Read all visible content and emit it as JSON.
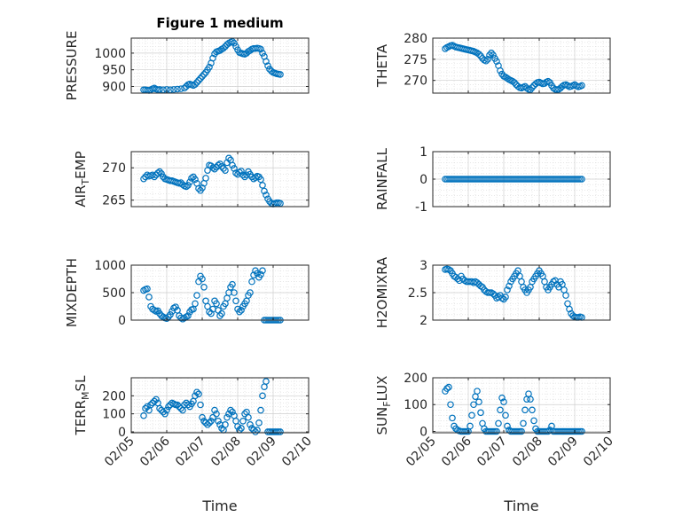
{
  "chart_data": [
    {
      "type": "scatter",
      "title": "Figure 1 medium",
      "ylabel": "PRESSURE",
      "ylim": [
        880,
        1045
      ],
      "yticks": [
        900,
        950,
        1000
      ],
      "xlim": [
        0,
        5
      ],
      "xticks": [
        "02/05",
        "02/06",
        "02/07",
        "02/08",
        "02/09",
        "02/10"
      ],
      "xlabel": "",
      "x": [
        0.35,
        0.4,
        0.45,
        0.5,
        0.55,
        0.6,
        0.65,
        0.7,
        0.75,
        0.8,
        0.9,
        1,
        1.1,
        1.2,
        1.3,
        1.4,
        1.5,
        1.55,
        1.6,
        1.65,
        1.7,
        1.75,
        1.8,
        1.85,
        1.9,
        1.95,
        2,
        2.05,
        2.1,
        2.15,
        2.2,
        2.25,
        2.3,
        2.35,
        2.4,
        2.45,
        2.5,
        2.55,
        2.6,
        2.65,
        2.7,
        2.75,
        2.8,
        2.85,
        2.9,
        2.95,
        3,
        3.05,
        3.1,
        3.15,
        3.2,
        3.25,
        3.3,
        3.35,
        3.4,
        3.45,
        3.5,
        3.55,
        3.6,
        3.65,
        3.7,
        3.75,
        3.8,
        3.85,
        3.9,
        3.95,
        4,
        4.05,
        4.1,
        4.15,
        4.2
      ],
      "y": [
        890,
        890,
        889,
        888,
        890,
        893,
        895,
        892,
        890,
        891,
        890,
        891,
        890,
        891,
        892,
        893,
        895,
        900,
        905,
        907,
        905,
        903,
        906,
        912,
        918,
        924,
        930,
        936,
        942,
        950,
        958,
        970,
        985,
        998,
        1004,
        1006,
        1008,
        1012,
        1015,
        1020,
        1026,
        1030,
        1033,
        1035,
        1030,
        1020,
        1010,
        1002,
        1000,
        998,
        997,
        1000,
        1005,
        1008,
        1012,
        1014,
        1014,
        1015,
        1014,
        1012,
        1000,
        990,
        975,
        962,
        952,
        946,
        942,
        940,
        938,
        937,
        936
      ]
    },
    {
      "type": "scatter",
      "ylabel": "THETA",
      "ylim": [
        267,
        280
      ],
      "yticks": [
        270,
        275,
        280
      ],
      "xlim": [
        0,
        5
      ],
      "xticks": [
        "02/05",
        "02/06",
        "02/07",
        "02/08",
        "02/09",
        "02/10"
      ],
      "xlabel": "",
      "x": [
        0.35,
        0.4,
        0.45,
        0.5,
        0.55,
        0.6,
        0.65,
        0.7,
        0.75,
        0.8,
        0.85,
        0.9,
        0.95,
        1,
        1.05,
        1.1,
        1.15,
        1.2,
        1.25,
        1.3,
        1.35,
        1.4,
        1.45,
        1.5,
        1.55,
        1.6,
        1.65,
        1.7,
        1.75,
        1.8,
        1.85,
        1.9,
        1.95,
        2,
        2.05,
        2.1,
        2.15,
        2.2,
        2.25,
        2.3,
        2.35,
        2.4,
        2.45,
        2.5,
        2.55,
        2.6,
        2.65,
        2.7,
        2.75,
        2.8,
        2.85,
        2.9,
        2.95,
        3,
        3.05,
        3.1,
        3.15,
        3.2,
        3.25,
        3.3,
        3.35,
        3.4,
        3.45,
        3.5,
        3.55,
        3.6,
        3.65,
        3.7,
        3.75,
        3.8,
        3.85,
        3.9,
        3.95,
        4,
        4.05,
        4.1,
        4.15,
        4.2
      ],
      "y": [
        277.5,
        277.8,
        278,
        278.2,
        278.3,
        278.1,
        277.9,
        277.8,
        277.7,
        277.6,
        277.5,
        277.4,
        277.3,
        277.2,
        277.1,
        277,
        276.9,
        276.7,
        276.5,
        276.2,
        275.8,
        275.2,
        274.8,
        274.6,
        275,
        276,
        276.5,
        276,
        275.2,
        274.5,
        273.5,
        272.3,
        271.5,
        271,
        270.8,
        270.5,
        270.2,
        270,
        269.8,
        269.5,
        269,
        268.6,
        268.3,
        268.2,
        268.4,
        268.6,
        268.2,
        267.9,
        267.8,
        268.3,
        268.8,
        269.2,
        269.5,
        269.6,
        269.4,
        269.2,
        269.3,
        269.6,
        269.8,
        269.5,
        268.8,
        268.2,
        267.9,
        267.8,
        267.9,
        268.2,
        268.6,
        268.9,
        269,
        268.8,
        268.5,
        268.6,
        268.8,
        269,
        268.7,
        268.5,
        268.6,
        268.8
      ]
    },
    {
      "type": "scatter",
      "ylabel": "AIR",
      "ylabel_sub": "T",
      "ylabel_rest": "EMP",
      "ylim": [
        264,
        272.5
      ],
      "yticks": [
        265,
        270
      ],
      "xlim": [
        0,
        5
      ],
      "xticks": [
        "02/05",
        "02/06",
        "02/07",
        "02/08",
        "02/09",
        "02/10"
      ],
      "xlabel": "",
      "x": [
        0.35,
        0.4,
        0.45,
        0.5,
        0.55,
        0.6,
        0.65,
        0.7,
        0.75,
        0.8,
        0.85,
        0.9,
        0.95,
        1,
        1.05,
        1.1,
        1.15,
        1.2,
        1.25,
        1.3,
        1.35,
        1.4,
        1.45,
        1.5,
        1.55,
        1.6,
        1.65,
        1.7,
        1.75,
        1.8,
        1.85,
        1.9,
        1.95,
        2,
        2.05,
        2.1,
        2.15,
        2.2,
        2.25,
        2.3,
        2.35,
        2.4,
        2.45,
        2.5,
        2.55,
        2.6,
        2.65,
        2.7,
        2.75,
        2.8,
        2.85,
        2.9,
        2.95,
        3,
        3.05,
        3.1,
        3.15,
        3.2,
        3.25,
        3.3,
        3.35,
        3.4,
        3.45,
        3.5,
        3.55,
        3.6,
        3.65,
        3.7,
        3.75,
        3.8,
        3.85,
        3.9,
        3.95,
        4,
        4.05,
        4.1,
        4.15,
        4.2
      ],
      "y": [
        268.3,
        268.6,
        268.9,
        268.7,
        268.8,
        268.9,
        268.6,
        268.9,
        269.2,
        269.4,
        269.1,
        268.6,
        268.3,
        268.2,
        268.1,
        268.0,
        268.0,
        267.9,
        267.8,
        267.7,
        267.6,
        267.7,
        267.4,
        267.2,
        267.1,
        267.3,
        267.8,
        268.4,
        268.6,
        268.2,
        267.6,
        266.8,
        266.5,
        266.9,
        267.6,
        268.4,
        269.6,
        270.4,
        270.3,
        270.0,
        269.8,
        270.1,
        270.4,
        270.6,
        270.2,
        269.9,
        269.6,
        270.8,
        271.5,
        271.2,
        270.4,
        269.9,
        269.2,
        269.0,
        269.3,
        269.5,
        268.9,
        268.6,
        268.9,
        269.4,
        269.0,
        268.6,
        268.3,
        268.5,
        268.7,
        268.6,
        268.2,
        267.3,
        266.4,
        265.8,
        265.2,
        264.8,
        264.5,
        264.4,
        264.5,
        264.6,
        264.6,
        264.5
      ]
    },
    {
      "type": "scatter",
      "ylabel": "RAINFALL",
      "ylim": [
        -1,
        1
      ],
      "yticks": [
        -1,
        0,
        1
      ],
      "xlim": [
        0,
        5
      ],
      "xticks": [
        "02/05",
        "02/06",
        "02/07",
        "02/08",
        "02/09",
        "02/10"
      ],
      "xlabel": "",
      "x": [
        0.35,
        0.4,
        0.45,
        0.5,
        0.55,
        0.6,
        0.65,
        0.7,
        0.75,
        0.8,
        0.85,
        0.9,
        0.95,
        1,
        1.05,
        1.1,
        1.15,
        1.2,
        1.25,
        1.3,
        1.35,
        1.4,
        1.45,
        1.5,
        1.55,
        1.6,
        1.65,
        1.7,
        1.75,
        1.8,
        1.85,
        1.9,
        1.95,
        2,
        2.05,
        2.1,
        2.15,
        2.2,
        2.25,
        2.3,
        2.35,
        2.4,
        2.45,
        2.5,
        2.55,
        2.6,
        2.65,
        2.7,
        2.75,
        2.8,
        2.85,
        2.9,
        2.95,
        3,
        3.05,
        3.1,
        3.15,
        3.2,
        3.25,
        3.3,
        3.35,
        3.4,
        3.45,
        3.5,
        3.55,
        3.6,
        3.65,
        3.7,
        3.75,
        3.8,
        3.85,
        3.9,
        3.95,
        4,
        4.05,
        4.1,
        4.15,
        4.2
      ],
      "y": [
        0,
        0,
        0,
        0,
        0,
        0,
        0,
        0,
        0,
        0,
        0,
        0,
        0,
        0,
        0,
        0,
        0,
        0,
        0,
        0,
        0,
        0,
        0,
        0,
        0,
        0,
        0,
        0,
        0,
        0,
        0,
        0,
        0,
        0,
        0,
        0,
        0,
        0,
        0,
        0,
        0,
        0,
        0,
        0,
        0,
        0,
        0,
        0,
        0,
        0,
        0,
        0,
        0,
        0,
        0,
        0,
        0,
        0,
        0,
        0,
        0,
        0,
        0,
        0,
        0,
        0,
        0,
        0,
        0,
        0,
        0,
        0,
        0,
        0,
        0,
        0,
        0,
        0
      ]
    },
    {
      "type": "scatter",
      "ylabel": "MIXDEPTH",
      "ylim": [
        0,
        1000
      ],
      "yticks": [
        0,
        500,
        1000
      ],
      "xlim": [
        0,
        5
      ],
      "xticks": [
        "02/05",
        "02/06",
        "02/07",
        "02/08",
        "02/09",
        "02/10"
      ],
      "xlabel": "",
      "x": [
        0.35,
        0.4,
        0.45,
        0.5,
        0.55,
        0.6,
        0.65,
        0.7,
        0.75,
        0.8,
        0.85,
        0.9,
        0.95,
        1,
        1.05,
        1.1,
        1.15,
        1.2,
        1.25,
        1.3,
        1.35,
        1.4,
        1.45,
        1.5,
        1.55,
        1.6,
        1.65,
        1.7,
        1.75,
        1.8,
        1.85,
        1.9,
        1.95,
        2,
        2.05,
        2.1,
        2.15,
        2.2,
        2.25,
        2.3,
        2.35,
        2.4,
        2.45,
        2.5,
        2.55,
        2.6,
        2.65,
        2.7,
        2.75,
        2.8,
        2.85,
        2.9,
        2.95,
        3,
        3.05,
        3.1,
        3.15,
        3.2,
        3.25,
        3.3,
        3.35,
        3.4,
        3.45,
        3.5,
        3.55,
        3.6,
        3.65,
        3.7,
        3.75,
        3.8,
        3.85,
        3.9,
        3.95,
        4,
        4.05,
        4.1,
        4.15,
        4.2
      ],
      "y": [
        540,
        560,
        570,
        420,
        250,
        200,
        180,
        160,
        170,
        120,
        80,
        60,
        40,
        30,
        60,
        100,
        160,
        220,
        240,
        180,
        80,
        40,
        20,
        40,
        60,
        80,
        150,
        190,
        200,
        300,
        450,
        700,
        800,
        750,
        600,
        350,
        250,
        150,
        120,
        200,
        350,
        300,
        180,
        80,
        120,
        250,
        300,
        400,
        500,
        600,
        650,
        500,
        350,
        200,
        150,
        180,
        250,
        300,
        350,
        450,
        500,
        700,
        820,
        900,
        850,
        780,
        830,
        900,
        0,
        0,
        0,
        0,
        0,
        0,
        0,
        0,
        0,
        0
      ]
    },
    {
      "type": "scatter",
      "ylabel": "H2OMIXRA",
      "ylim": [
        2,
        3
      ],
      "yticks": [
        2,
        2.5,
        3
      ],
      "xlim": [
        0,
        5
      ],
      "xticks": [
        "02/05",
        "02/06",
        "02/07",
        "02/08",
        "02/09",
        "02/10"
      ],
      "xlabel": "",
      "x": [
        0.35,
        0.4,
        0.45,
        0.5,
        0.55,
        0.6,
        0.65,
        0.7,
        0.75,
        0.8,
        0.85,
        0.9,
        0.95,
        1,
        1.05,
        1.1,
        1.15,
        1.2,
        1.25,
        1.3,
        1.35,
        1.4,
        1.45,
        1.5,
        1.55,
        1.6,
        1.65,
        1.7,
        1.75,
        1.8,
        1.85,
        1.9,
        1.95,
        2,
        2.05,
        2.1,
        2.15,
        2.2,
        2.25,
        2.3,
        2.35,
        2.4,
        2.45,
        2.5,
        2.55,
        2.6,
        2.65,
        2.7,
        2.75,
        2.8,
        2.85,
        2.9,
        2.95,
        3,
        3.05,
        3.1,
        3.15,
        3.2,
        3.25,
        3.3,
        3.35,
        3.4,
        3.45,
        3.5,
        3.55,
        3.6,
        3.65,
        3.7,
        3.75,
        3.8,
        3.85,
        3.9,
        3.95,
        4,
        4.05,
        4.1,
        4.15,
        4.2
      ],
      "y": [
        2.92,
        2.93,
        2.92,
        2.9,
        2.85,
        2.8,
        2.78,
        2.75,
        2.72,
        2.8,
        2.75,
        2.72,
        2.7,
        2.7,
        2.7,
        2.7,
        2.68,
        2.7,
        2.68,
        2.65,
        2.62,
        2.6,
        2.55,
        2.52,
        2.5,
        2.5,
        2.5,
        2.48,
        2.45,
        2.4,
        2.42,
        2.45,
        2.4,
        2.38,
        2.42,
        2.55,
        2.62,
        2.7,
        2.75,
        2.8,
        2.85,
        2.9,
        2.8,
        2.7,
        2.6,
        2.55,
        2.5,
        2.55,
        2.6,
        2.7,
        2.75,
        2.8,
        2.85,
        2.9,
        2.85,
        2.8,
        2.7,
        2.6,
        2.55,
        2.6,
        2.65,
        2.7,
        2.72,
        2.65,
        2.6,
        2.7,
        2.65,
        2.55,
        2.45,
        2.3,
        2.2,
        2.12,
        2.08,
        2.06,
        2.05,
        2.05,
        2.06,
        2.05
      ]
    },
    {
      "type": "scatter",
      "ylabel": "TERR",
      "ylabel_sub": "M",
      "ylabel_rest": "SL",
      "ylim": [
        -5,
        300
      ],
      "yticks": [
        0,
        100,
        200
      ],
      "xlim": [
        0,
        5
      ],
      "xticks": [
        "02/05",
        "02/06",
        "02/07",
        "02/08",
        "02/09",
        "02/10"
      ],
      "xlabel": "Time",
      "x": [
        0.35,
        0.4,
        0.45,
        0.5,
        0.55,
        0.6,
        0.65,
        0.7,
        0.75,
        0.8,
        0.85,
        0.9,
        0.95,
        1,
        1.05,
        1.1,
        1.15,
        1.2,
        1.25,
        1.3,
        1.35,
        1.4,
        1.45,
        1.5,
        1.55,
        1.6,
        1.65,
        1.7,
        1.75,
        1.8,
        1.85,
        1.9,
        1.95,
        2,
        2.05,
        2.1,
        2.15,
        2.2,
        2.25,
        2.3,
        2.35,
        2.4,
        2.45,
        2.5,
        2.55,
        2.6,
        2.65,
        2.7,
        2.75,
        2.8,
        2.85,
        2.9,
        2.95,
        3,
        3.05,
        3.1,
        3.15,
        3.2,
        3.25,
        3.3,
        3.35,
        3.4,
        3.45,
        3.5,
        3.55,
        3.6,
        3.65,
        3.7,
        3.75,
        3.8,
        3.85,
        3.9,
        3.95,
        4,
        4.05,
        4.1,
        4.15,
        4.2
      ],
      "y": [
        90,
        130,
        140,
        120,
        150,
        160,
        170,
        180,
        160,
        130,
        120,
        110,
        100,
        120,
        140,
        150,
        160,
        155,
        150,
        150,
        140,
        130,
        120,
        150,
        160,
        150,
        140,
        155,
        170,
        200,
        220,
        210,
        150,
        80,
        60,
        50,
        40,
        50,
        60,
        80,
        120,
        100,
        60,
        40,
        20,
        10,
        40,
        80,
        100,
        120,
        110,
        90,
        60,
        30,
        10,
        20,
        60,
        100,
        110,
        80,
        40,
        20,
        10,
        0,
        10,
        50,
        120,
        200,
        250,
        280,
        0,
        0,
        0,
        0,
        0,
        0,
        0,
        0
      ]
    },
    {
      "type": "scatter",
      "ylabel": "SUN",
      "ylabel_sub": "F",
      "ylabel_rest": "LUX",
      "ylim": [
        -5,
        200
      ],
      "yticks": [
        0,
        100,
        200
      ],
      "xlim": [
        0,
        5
      ],
      "xticks": [
        "02/05",
        "02/06",
        "02/07",
        "02/08",
        "02/09",
        "02/10"
      ],
      "xlabel": "Time",
      "x": [
        0.35,
        0.4,
        0.45,
        0.5,
        0.55,
        0.6,
        0.65,
        0.7,
        0.75,
        0.8,
        0.85,
        0.9,
        0.95,
        1,
        1.05,
        1.1,
        1.15,
        1.2,
        1.25,
        1.3,
        1.35,
        1.4,
        1.45,
        1.5,
        1.55,
        1.6,
        1.65,
        1.7,
        1.75,
        1.8,
        1.85,
        1.9,
        1.95,
        2,
        2.05,
        2.1,
        2.15,
        2.2,
        2.25,
        2.3,
        2.35,
        2.4,
        2.45,
        2.5,
        2.55,
        2.6,
        2.65,
        2.7,
        2.75,
        2.8,
        2.85,
        2.9,
        2.95,
        3,
        3.05,
        3.1,
        3.15,
        3.2,
        3.25,
        3.3,
        3.35,
        3.4,
        3.45,
        3.5,
        3.55,
        3.6,
        3.65,
        3.7,
        3.75,
        3.8,
        3.85,
        3.9,
        3.95,
        4,
        4.05,
        4.1,
        4.15,
        4.2
      ],
      "y": [
        150,
        160,
        165,
        100,
        50,
        20,
        10,
        5,
        2,
        0,
        0,
        0,
        0,
        0,
        20,
        60,
        100,
        130,
        150,
        110,
        70,
        30,
        10,
        0,
        0,
        0,
        0,
        0,
        0,
        0,
        30,
        80,
        125,
        110,
        60,
        20,
        5,
        0,
        0,
        0,
        0,
        0,
        0,
        0,
        30,
        80,
        120,
        140,
        120,
        80,
        40,
        10,
        0,
        0,
        0,
        0,
        0,
        0,
        0,
        5,
        20,
        0,
        0,
        0,
        0,
        0,
        0,
        0,
        0,
        0,
        0,
        0,
        0,
        0,
        0,
        0,
        0,
        0
      ]
    }
  ]
}
